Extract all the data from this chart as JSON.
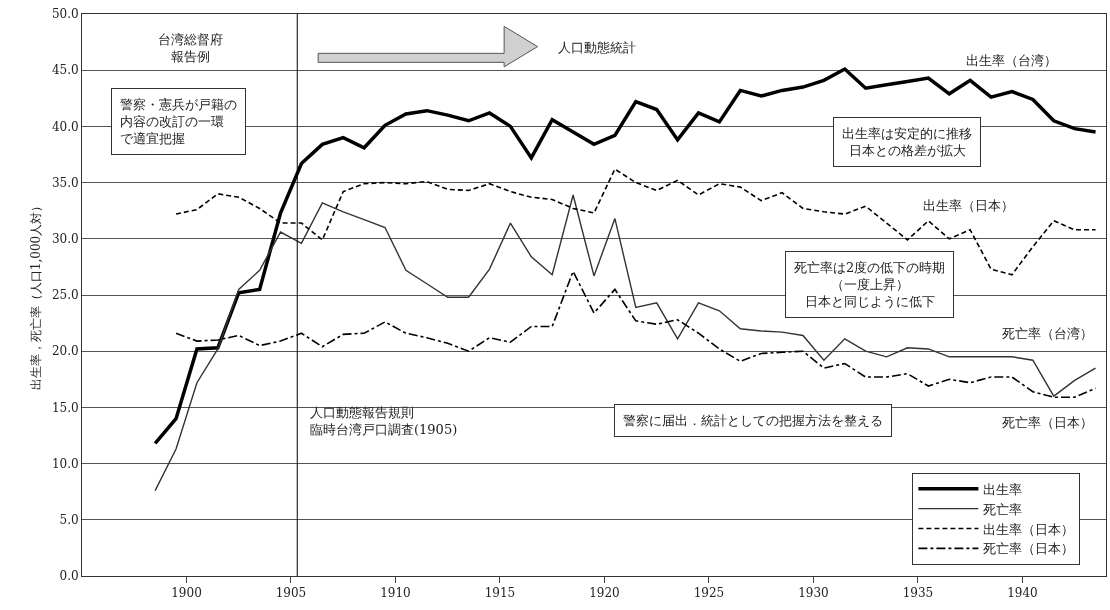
{
  "chart_data": {
    "type": "line",
    "ylabel": "出生率，死亡率（人口1,000人対）",
    "x": [
      1898.5,
      1899.5,
      1900.5,
      1901.5,
      1902.5,
      1903.5,
      1904.5,
      1905.5,
      1906.5,
      1907.5,
      1908.5,
      1909.5,
      1910.5,
      1911.5,
      1912.5,
      1913.5,
      1914.5,
      1915.5,
      1916.5,
      1917.5,
      1918.5,
      1919.5,
      1920.5,
      1921.5,
      1922.5,
      1923.5,
      1924.5,
      1925.5,
      1926.5,
      1927.5,
      1928.5,
      1929.5,
      1930.5,
      1931.5,
      1932.5,
      1933.5,
      1934.5,
      1935.5,
      1936.5,
      1937.5,
      1938.5,
      1939.5,
      1940.5,
      1941.5,
      1942.5,
      1943.5
    ],
    "series": [
      {
        "name": "出生率",
        "color": "#000000",
        "line_style": "solid",
        "values": [
          11.8,
          14.0,
          20.2,
          20.3,
          25.2,
          25.5,
          32.3,
          36.7,
          38.4,
          39.0,
          38.1,
          40.1,
          41.1,
          41.4,
          41.0,
          40.5,
          41.2,
          40.0,
          37.2,
          40.6,
          39.5,
          38.4,
          39.2,
          42.2,
          41.5,
          38.8,
          41.2,
          40.4,
          43.2,
          42.7,
          43.2,
          43.5,
          44.1,
          45.1,
          43.4,
          43.7,
          44.0,
          44.3,
          42.9,
          44.1,
          42.6,
          43.1,
          42.4,
          40.5,
          39.8,
          39.5
        ]
      },
      {
        "name": "死亡率",
        "color": "#333333",
        "line_style": "solid",
        "values": [
          7.6,
          11.3,
          17.2,
          20.2,
          25.5,
          27.2,
          30.6,
          29.6,
          33.2,
          32.4,
          31.7,
          31.0,
          27.2,
          26.0,
          24.8,
          24.8,
          27.3,
          31.4,
          28.4,
          26.8,
          33.9,
          26.7,
          31.8,
          23.9,
          24.3,
          21.1,
          24.3,
          23.6,
          22.0,
          21.8,
          21.7,
          21.4,
          19.2,
          21.1,
          20.0,
          19.5,
          20.3,
          20.2,
          19.5,
          19.5,
          19.5,
          19.5,
          19.2,
          16.0,
          17.4,
          18.5
        ]
      },
      {
        "name": "出生率（日本）",
        "color": "#000000",
        "line_style": "dashed",
        "values": [
          null,
          32.2,
          32.6,
          34.0,
          33.7,
          32.7,
          31.4,
          31.4,
          29.9,
          34.2,
          34.9,
          35.0,
          34.9,
          35.1,
          34.4,
          34.3,
          34.9,
          34.2,
          33.7,
          33.5,
          32.7,
          32.3,
          36.2,
          35.0,
          34.3,
          35.2,
          33.9,
          34.9,
          34.6,
          33.4,
          34.1,
          32.7,
          32.4,
          32.2,
          32.9,
          31.4,
          29.9,
          31.6,
          30.0,
          30.8,
          27.3,
          26.8,
          29.3,
          31.6,
          30.8,
          30.8
        ]
      },
      {
        "name": "死亡率（日本）",
        "color": "#000000",
        "line_style": "dashdot",
        "values": [
          null,
          21.6,
          20.9,
          21.0,
          21.4,
          20.5,
          20.9,
          21.6,
          20.4,
          21.5,
          21.6,
          22.6,
          21.6,
          21.2,
          20.7,
          20.0,
          21.2,
          20.8,
          22.2,
          22.2,
          27.1,
          23.4,
          25.5,
          22.7,
          22.4,
          22.8,
          21.6,
          20.2,
          19.1,
          19.8,
          19.9,
          20.0,
          18.5,
          18.9,
          17.7,
          17.7,
          18.0,
          16.9,
          17.5,
          17.2,
          17.7,
          17.7,
          16.4,
          15.9,
          15.9,
          16.7
        ]
      }
    ],
    "xlim": [
      1895,
      1944
    ],
    "xticks": [
      1900,
      1905,
      1910,
      1915,
      1920,
      1925,
      1930,
      1935,
      1940
    ],
    "ylim": [
      0,
      50
    ],
    "yticks": [
      {
        "value": 0,
        "label": "0.0"
      },
      {
        "value": 5,
        "label": "5.0"
      },
      {
        "value": 10,
        "label": "10.0"
      },
      {
        "value": 15,
        "label": "15.0"
      },
      {
        "value": 20,
        "label": "20.0"
      },
      {
        "value": 25,
        "label": "25.0"
      },
      {
        "value": 30,
        "label": "30.0"
      },
      {
        "value": 35,
        "label": "35.0"
      },
      {
        "value": 40,
        "label": "40.0"
      },
      {
        "value": 45,
        "label": "45.0"
      },
      {
        "value": 50,
        "label": "50.0"
      }
    ],
    "grid": "y",
    "legend": "bottom right",
    "marker": "none",
    "ref_lines": [
      {
        "axis": "x",
        "value": 1905.3,
        "color": "#000000"
      }
    ],
    "annotations": [
      "台湾総督府報告例",
      "警察・憲兵が戸籍の内容の改訂の一環で適宜把握",
      "人口動態統計",
      "出生率（台湾）",
      "出生率は安定的に推移日本との格差が拡大",
      "出生率（日本）",
      "死亡率は2度の低下の時期（一度上昇）日本と同じように低下",
      "死亡率（台湾）",
      "人口動態報告規則臨時台湾戸口調査(1905)",
      "警察に届出．統計としての把握方法を整える",
      "死亡率（日本）"
    ]
  }
}
